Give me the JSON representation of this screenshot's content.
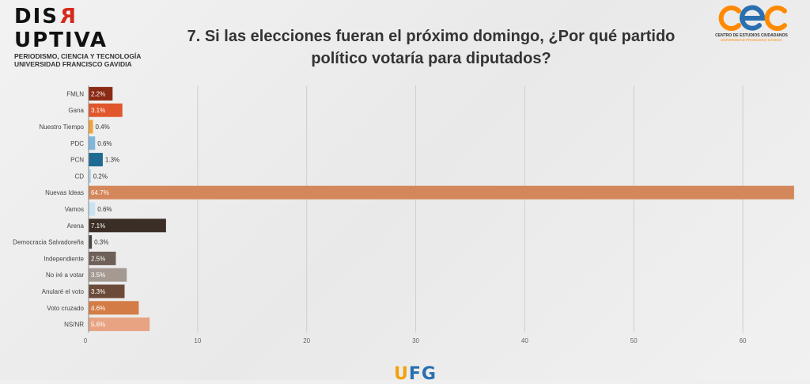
{
  "header": {
    "title_line1": "7. Si las elecciones fueran el próximo domingo, ¿Por qué partido",
    "title_line2": "político votaría para diputados?"
  },
  "brand_left": {
    "name_start": "DIS",
    "name_flip": "R",
    "name_end": "UPTIVA",
    "tagline1": "PERIODISMO, CIENCIA Y TECNOLOGÍA",
    "tagline2": "UNIVERSIDAD FRANCISCO GAVIDIA"
  },
  "brand_right": {
    "logo_text": "cec",
    "name": "CENTRO DE ESTUDIOS CIUDADANOS",
    "sub": "UNIVERSIDAD FRANCISCO GAVIDIA"
  },
  "bottom_logo": {
    "text_a": "U",
    "text_b": "FG"
  },
  "colors": {
    "title": "#333333",
    "grid": "#cfcfcf",
    "axis": "#888888"
  },
  "chart_data": {
    "type": "bar",
    "orientation": "horizontal",
    "categories": [
      "FMLN",
      "Gana",
      "Nuestro Tiempo",
      "PDC",
      "PCN",
      "CD",
      "Nuevas Ideas",
      "Vamos",
      "Arena",
      "Democracia Salvadoreña",
      "Independiente",
      "No iré a votar",
      "Anularé el voto",
      "Voto cruzado",
      "NS/NR"
    ],
    "values": [
      2.2,
      3.1,
      0.4,
      0.6,
      1.3,
      0.2,
      64.7,
      0.6,
      7.1,
      0.3,
      2.5,
      3.5,
      3.3,
      4.6,
      5.6
    ],
    "labels": [
      "2.2%",
      "3.1%",
      "0.4%",
      "0.6%",
      "1.3%",
      "0.2%",
      "64.7%",
      "0.6%",
      "7.1%",
      "0.3%",
      "2.5%",
      "3.5%",
      "3.3%",
      "4.6%",
      "5.6%"
    ],
    "colors": [
      "#8b2a15",
      "#e0572d",
      "#f2a33a",
      "#7fb8dc",
      "#1e6a93",
      "#a9d3ea",
      "#d4875a",
      "#c9e3f1",
      "#3a2e26",
      "#4a4540",
      "#6e5f58",
      "#a49a92",
      "#6b4a3a",
      "#d47c45",
      "#e8a383"
    ],
    "xlim": [
      0,
      65
    ],
    "xticks": [
      0,
      10,
      20,
      30,
      40,
      50,
      60
    ],
    "grid": true
  }
}
